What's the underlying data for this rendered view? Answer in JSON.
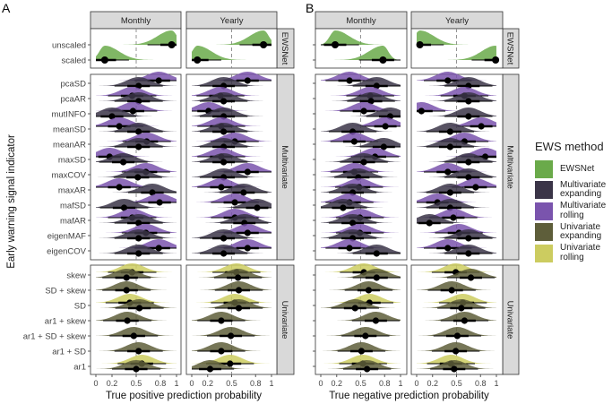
{
  "chart_data": {
    "type": "halfeye",
    "ylabel": "Early warning signal indicator",
    "xticks": [
      0,
      0.2,
      0.5,
      0.8,
      1
    ],
    "xtick_labels": [
      "0",
      "0.2",
      "0.5",
      "0.8",
      "1"
    ],
    "xlim": [
      0,
      1
    ],
    "reference_line": 0.5,
    "facets": [
      "Monthly",
      "Yearly"
    ],
    "legend": {
      "title": "EWS method",
      "placement": "right",
      "entries": [
        {
          "key": "ewsnet",
          "label": "EWSNet",
          "color": "#6aaa4a"
        },
        {
          "key": "multi_exp",
          "label": "Multivariate\nexpanding",
          "color": "#3b3548"
        },
        {
          "key": "multi_roll",
          "label": "Multivariate\nrolling",
          "color": "#7a54ad"
        },
        {
          "key": "uni_exp",
          "label": "Univariate\nexpanding",
          "color": "#5e5e3a"
        },
        {
          "key": "uni_roll",
          "label": "Univariate\nrolling",
          "color": "#cccc60"
        }
      ]
    },
    "panels": [
      {
        "tag": "A",
        "xlabel": "True positive prediction probability",
        "show_row_labels": true,
        "groups": [
          {
            "name": "EWSNet",
            "rows": [
              {
                "indicator": "unscaled",
                "points": [
                  {
                    "method": "ewsnet",
                    "Monthly": 0.94,
                    "Yearly": 0.9
                  }
                ]
              },
              {
                "indicator": "scaled",
                "points": [
                  {
                    "method": "ewsnet",
                    "Monthly": 0.11,
                    "Yearly": 0.07
                  }
                ]
              }
            ]
          },
          {
            "name": "Multivariate",
            "rows": [
              {
                "indicator": "pcaSD",
                "points": [
                  {
                    "method": "multi_roll",
                    "Monthly": 0.78,
                    "Yearly": 0.7
                  },
                  {
                    "method": "multi_exp",
                    "Monthly": 0.53,
                    "Yearly": 0.4
                  }
                ]
              },
              {
                "indicator": "pcaAR",
                "points": [
                  {
                    "method": "multi_roll",
                    "Monthly": 0.45,
                    "Yearly": 0.36
                  },
                  {
                    "method": "multi_exp",
                    "Monthly": 0.53,
                    "Yearly": 0.4
                  }
                ]
              },
              {
                "indicator": "mutINFO",
                "points": [
                  {
                    "method": "multi_roll",
                    "Monthly": 0.46,
                    "Yearly": 0.21
                  },
                  {
                    "method": "multi_exp",
                    "Monthly": 0.2,
                    "Yearly": 0.4
                  }
                ]
              },
              {
                "indicator": "meanSD",
                "points": [
                  {
                    "method": "multi_roll",
                    "Monthly": 0.29,
                    "Yearly": 0.37
                  },
                  {
                    "method": "multi_exp",
                    "Monthly": 0.53,
                    "Yearly": 0.4
                  }
                ]
              },
              {
                "indicator": "meanAR",
                "points": [
                  {
                    "method": "multi_roll",
                    "Monthly": 0.63,
                    "Yearly": 0.54
                  },
                  {
                    "method": "multi_exp",
                    "Monthly": 0.53,
                    "Yearly": 0.4
                  }
                ]
              },
              {
                "indicator": "maxSD",
                "points": [
                  {
                    "method": "multi_roll",
                    "Monthly": 0.17,
                    "Yearly": 0.37
                  },
                  {
                    "method": "multi_exp",
                    "Monthly": 0.34,
                    "Yearly": 0.4
                  }
                ]
              },
              {
                "indicator": "maxCOV",
                "points": [
                  {
                    "method": "multi_roll",
                    "Monthly": 0.62,
                    "Yearly": 0.7
                  },
                  {
                    "method": "multi_exp",
                    "Monthly": 0.52,
                    "Yearly": 0.4
                  }
                ]
              },
              {
                "indicator": "maxAR",
                "points": [
                  {
                    "method": "multi_roll",
                    "Monthly": 0.29,
                    "Yearly": 0.37
                  },
                  {
                    "method": "multi_exp",
                    "Monthly": 0.7,
                    "Yearly": 0.65
                  }
                ]
              },
              {
                "indicator": "mafSD",
                "points": [
                  {
                    "method": "multi_roll",
                    "Monthly": 0.79,
                    "Yearly": 0.54
                  },
                  {
                    "method": "multi_exp",
                    "Monthly": 0.35,
                    "Yearly": 0.82
                  }
                ]
              },
              {
                "indicator": "mafAR",
                "points": [
                  {
                    "method": "multi_roll",
                    "Monthly": 0.45,
                    "Yearly": 0.54
                  },
                  {
                    "method": "multi_exp",
                    "Monthly": 0.53,
                    "Yearly": 0.66
                  }
                ]
              },
              {
                "indicator": "eigenMAF",
                "points": [
                  {
                    "method": "multi_roll",
                    "Monthly": 0.62,
                    "Yearly": 0.7
                  },
                  {
                    "method": "multi_exp",
                    "Monthly": 0.53,
                    "Yearly": 0.4
                  }
                ]
              },
              {
                "indicator": "eigenCOV",
                "points": [
                  {
                    "method": "multi_roll",
                    "Monthly": 0.78,
                    "Yearly": 0.7
                  },
                  {
                    "method": "multi_exp",
                    "Monthly": 0.53,
                    "Yearly": 0.4
                  }
                ]
              }
            ]
          },
          {
            "name": "Univariate",
            "rows": [
              {
                "indicator": "skew",
                "points": [
                  {
                    "method": "uni_roll",
                    "Monthly": 0.45,
                    "Yearly": 0.56
                  },
                  {
                    "method": "uni_exp",
                    "Monthly": 0.38,
                    "Yearly": 0.58
                  }
                ]
              },
              {
                "indicator": "SD + skew",
                "points": [
                  {
                    "method": "uni_exp",
                    "Monthly": 0.38,
                    "Yearly": 0.59
                  }
                ]
              },
              {
                "indicator": "SD",
                "points": [
                  {
                    "method": "uni_roll",
                    "Monthly": 0.42,
                    "Yearly": 0.54
                  },
                  {
                    "method": "uni_exp",
                    "Monthly": 0.54,
                    "Yearly": 0.59
                  }
                ]
              },
              {
                "indicator": "ar1 + skew",
                "points": [
                  {
                    "method": "uni_exp",
                    "Monthly": 0.39,
                    "Yearly": 0.37
                  }
                ]
              },
              {
                "indicator": "ar1 + SD + skew",
                "points": [
                  {
                    "method": "uni_exp",
                    "Monthly": 0.47,
                    "Yearly": 0.49
                  }
                ]
              },
              {
                "indicator": "ar1 + SD",
                "points": [
                  {
                    "method": "uni_exp",
                    "Monthly": 0.53,
                    "Yearly": 0.37
                  }
                ]
              },
              {
                "indicator": "ar1",
                "points": [
                  {
                    "method": "uni_roll",
                    "Monthly": 0.57,
                    "Yearly": 0.48
                  },
                  {
                    "method": "uni_exp",
                    "Monthly": 0.5,
                    "Yearly": 0.23
                  }
                ]
              }
            ]
          }
        ]
      },
      {
        "tag": "B",
        "xlabel": "True negative prediction probability",
        "show_row_labels": false,
        "groups": [
          {
            "name": "EWSNet",
            "rows": [
              {
                "indicator": "unscaled",
                "points": [
                  {
                    "method": "ewsnet",
                    "Monthly": 0.18,
                    "Yearly": 0.04
                  }
                ]
              },
              {
                "indicator": "scaled",
                "points": [
                  {
                    "method": "ewsnet",
                    "Monthly": 0.78,
                    "Yearly": 0.99
                  }
                ]
              }
            ]
          },
          {
            "name": "Multivariate",
            "rows": [
              {
                "indicator": "pcaSD",
                "points": [
                  {
                    "method": "multi_roll",
                    "Monthly": 0.36,
                    "Yearly": 0.39
                  },
                  {
                    "method": "multi_exp",
                    "Monthly": 0.7,
                    "Yearly": 0.65
                  }
                ]
              },
              {
                "indicator": "pcaAR",
                "points": [
                  {
                    "method": "multi_roll",
                    "Monthly": 0.62,
                    "Yearly": 0.6
                  },
                  {
                    "method": "multi_exp",
                    "Monthly": 0.63,
                    "Yearly": 0.65
                  }
                ]
              },
              {
                "indicator": "mutINFO",
                "points": [
                  {
                    "method": "multi_roll",
                    "Monthly": 0.54,
                    "Yearly": 0.06
                  },
                  {
                    "method": "multi_exp",
                    "Monthly": 0.87,
                    "Yearly": 0.65
                  }
                ]
              },
              {
                "indicator": "meanSD",
                "points": [
                  {
                    "method": "multi_roll",
                    "Monthly": 0.81,
                    "Yearly": 0.81
                  },
                  {
                    "method": "multi_exp",
                    "Monthly": 0.4,
                    "Yearly": 0.42
                  }
                ]
              },
              {
                "indicator": "meanAR",
                "points": [
                  {
                    "method": "multi_roll",
                    "Monthly": 0.42,
                    "Yearly": 0.6
                  },
                  {
                    "method": "multi_exp",
                    "Monthly": 0.79,
                    "Yearly": 0.42
                  }
                ]
              },
              {
                "indicator": "maxSD",
                "points": [
                  {
                    "method": "multi_roll",
                    "Monthly": 0.68,
                    "Yearly": 0.86
                  },
                  {
                    "method": "multi_exp",
                    "Monthly": 0.54,
                    "Yearly": 0.65
                  }
                ]
              },
              {
                "indicator": "maxCOV",
                "points": [
                  {
                    "method": "multi_roll",
                    "Monthly": 0.42,
                    "Yearly": 0.39
                  },
                  {
                    "method": "multi_exp",
                    "Monthly": 0.47,
                    "Yearly": 0.65
                  }
                ]
              },
              {
                "indicator": "maxAR",
                "points": [
                  {
                    "method": "multi_roll",
                    "Monthly": 0.48,
                    "Yearly": 0.74
                  },
                  {
                    "method": "multi_exp",
                    "Monthly": 0.4,
                    "Yearly": 0.42
                  }
                ]
              },
              {
                "indicator": "mafSD",
                "points": [
                  {
                    "method": "multi_roll",
                    "Monthly": 0.36,
                    "Yearly": 0.26
                  },
                  {
                    "method": "multi_exp",
                    "Monthly": 0.28,
                    "Yearly": 0.42
                  }
                ]
              },
              {
                "indicator": "mafAR",
                "points": [
                  {
                    "method": "multi_roll",
                    "Monthly": 0.49,
                    "Yearly": 0.46
                  },
                  {
                    "method": "multi_exp",
                    "Monthly": 0.4,
                    "Yearly": 0.16
                  }
                ]
              },
              {
                "indicator": "eigenMAF",
                "points": [
                  {
                    "method": "multi_roll",
                    "Monthly": 0.49,
                    "Yearly": 0.53
                  },
                  {
                    "method": "multi_exp",
                    "Monthly": 0.4,
                    "Yearly": 0.65
                  }
                ]
              },
              {
                "indicator": "eigenCOV",
                "points": [
                  {
                    "method": "multi_roll",
                    "Monthly": 0.36,
                    "Yearly": 0.39
                  },
                  {
                    "method": "multi_exp",
                    "Monthly": 0.7,
                    "Yearly": 0.65
                  }
                ]
              }
            ]
          },
          {
            "name": "Univariate",
            "rows": [
              {
                "indicator": "skew",
                "points": [
                  {
                    "method": "uni_roll",
                    "Monthly": 0.54,
                    "Yearly": 0.49
                  },
                  {
                    "method": "uni_exp",
                    "Monthly": 0.7,
                    "Yearly": 0.68
                  }
                ]
              },
              {
                "indicator": "SD + skew",
                "points": [
                  {
                    "method": "uni_exp",
                    "Monthly": 0.6,
                    "Yearly": 0.44
                  }
                ]
              },
              {
                "indicator": "SD",
                "points": [
                  {
                    "method": "uni_roll",
                    "Monthly": 0.61,
                    "Yearly": 0.58
                  },
                  {
                    "method": "uni_exp",
                    "Monthly": 0.43,
                    "Yearly": 0.56
                  }
                ]
              },
              {
                "indicator": "ar1 + skew",
                "points": [
                  {
                    "method": "uni_exp",
                    "Monthly": 0.69,
                    "Yearly": 0.6
                  }
                ]
              },
              {
                "indicator": "ar1 + SD + skew",
                "points": [
                  {
                    "method": "uni_exp",
                    "Monthly": 0.56,
                    "Yearly": 0.51
                  }
                ]
              },
              {
                "indicator": "ar1 + SD",
                "points": [
                  {
                    "method": "uni_exp",
                    "Monthly": 0.51,
                    "Yearly": 0.49
                  }
                ]
              },
              {
                "indicator": "ar1",
                "points": [
                  {
                    "method": "uni_roll",
                    "Monthly": 0.53,
                    "Yearly": 0.43
                  },
                  {
                    "method": "uni_exp",
                    "Monthly": 0.58,
                    "Yearly": 0.47
                  }
                ]
              }
            ]
          }
        ]
      }
    ]
  }
}
